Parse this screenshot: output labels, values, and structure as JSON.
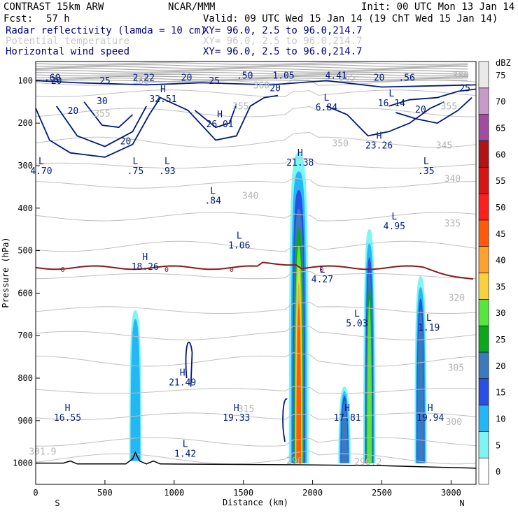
{
  "header": {
    "model": "CONTRAST 15km ARW",
    "center": "NCAR/MMM",
    "init": "Init: 00 UTC Mon 13 Jan 14",
    "fcst_label": "Fcst:",
    "fcst_value": "57 h",
    "valid": "Valid: 09 UTC Wed 15 Jan 14 (19 ChT Wed 15 Jan 14)"
  },
  "fields": [
    {
      "name": "Radar reflectivity (lamda = 10 cm)",
      "xy": "XY=  96.0,  2.5 to  96.0,214.7",
      "color": "#000080"
    },
    {
      "name": "Potential temperature",
      "xy": "XY=  96.0,  2.5 to  96.0,214.7",
      "color": "#c8c8c8"
    },
    {
      "name": "Horizontal wind speed",
      "xy": "XY=  96.0,  2.5 to  96.0,214.7",
      "color": "#000080"
    }
  ],
  "chart_data": {
    "type": "cross-section",
    "title": "Radar reflectivity / potential temperature / wind speed cross-section",
    "xlabel": "Distance (km)",
    "ylabel": "Pressure (hPa)",
    "xlim": [
      0,
      3180
    ],
    "ylim": [
      1050,
      55
    ],
    "x_ticks": [
      0,
      500,
      1000,
      1500,
      2000,
      2500,
      3000
    ],
    "y_ticks": [
      100,
      200,
      300,
      400,
      500,
      600,
      700,
      800,
      900,
      1000
    ],
    "x_end_labels": {
      "left": "S",
      "right": "N"
    },
    "colorbar": {
      "unit": "dBZ",
      "labels": [
        0,
        5,
        10,
        15,
        20,
        25,
        30,
        35,
        40,
        45,
        50,
        55,
        60,
        65,
        70,
        75
      ],
      "colors": [
        "#ffffff",
        "#7ef5f5",
        "#23b7f5",
        "#2a4fe6",
        "#3a7abf",
        "#0aa81a",
        "#56e63c",
        "#f7d23c",
        "#ffa12e",
        "#ff5a0a",
        "#ff1e1e",
        "#d81414",
        "#b01414",
        "#a04ca0",
        "#c89ac8",
        "#e9e9e9"
      ]
    },
    "reflectivity_cells": [
      {
        "x": 1900,
        "top": 270,
        "bottom": 1000,
        "max_dbz": 45
      },
      {
        "x": 2410,
        "top": 450,
        "bottom": 1000,
        "max_dbz": 30
      },
      {
        "x": 2780,
        "top": 560,
        "bottom": 1000,
        "max_dbz": 20
      },
      {
        "x": 2230,
        "top": 820,
        "bottom": 1000,
        "max_dbz": 20
      },
      {
        "x": 720,
        "top": 640,
        "bottom": 995,
        "max_dbz": 10
      }
    ],
    "wind_labels": [
      {
        "x": 150,
        "p": 108,
        "text": "20"
      },
      {
        "x": 500,
        "p": 108,
        "text": "25"
      },
      {
        "x": 1090,
        "p": 100,
        "text": "20"
      },
      {
        "x": 1290,
        "p": 108,
        "text": "25"
      },
      {
        "x": 2480,
        "p": 100,
        "text": "20"
      },
      {
        "x": 3100,
        "p": 125,
        "text": "25"
      },
      {
        "x": 270,
        "p": 178,
        "text": "20"
      },
      {
        "x": 480,
        "p": 155,
        "text": "30"
      },
      {
        "x": 650,
        "p": 250,
        "text": "20"
      },
      {
        "x": 1730,
        "p": 125,
        "text": "20"
      },
      {
        "x": 2780,
        "p": 175,
        "text": "20"
      }
    ],
    "theta_labels": [
      {
        "x": 760,
        "p": 108,
        "text": "360"
      },
      {
        "x": 1630,
        "p": 118,
        "text": "360"
      },
      {
        "x": 2250,
        "p": 100,
        "text": "365"
      },
      {
        "x": 3070,
        "p": 95,
        "text": "380"
      },
      {
        "x": 480,
        "p": 185,
        "text": "355"
      },
      {
        "x": 1480,
        "p": 168,
        "text": "355"
      },
      {
        "x": 2200,
        "p": 255,
        "text": "350"
      },
      {
        "x": 2985,
        "p": 168,
        "text": "355"
      },
      {
        "x": 2950,
        "p": 260,
        "text": "345"
      },
      {
        "x": 3010,
        "p": 338,
        "text": "340"
      },
      {
        "x": 1550,
        "p": 378,
        "text": "340"
      },
      {
        "x": 3010,
        "p": 443,
        "text": "335"
      },
      {
        "x": 3040,
        "p": 618,
        "text": "320"
      },
      {
        "x": 3035,
        "p": 783,
        "text": "305"
      },
      {
        "x": 3020,
        "p": 910,
        "text": "300"
      },
      {
        "x": 1520,
        "p": 880,
        "text": "315"
      },
      {
        "x": 1870,
        "p": 1002,
        "text": "290"
      },
      {
        "x": 2400,
        "p": 1005,
        "text": "290.2"
      },
      {
        "x": 50,
        "p": 980,
        "text": "301.9"
      }
    ],
    "freezing_level_label": "0",
    "extrema": [
      {
        "x": 120,
        "p": 100,
        "text": ".60"
      },
      {
        "x": 780,
        "p": 100,
        "text": "2.22"
      },
      {
        "x": 1510,
        "p": 95,
        "text": ".50"
      },
      {
        "x": 1790,
        "p": 95,
        "text": "1.05"
      },
      {
        "x": 2170,
        "p": 95,
        "text": "4.41"
      },
      {
        "x": 2680,
        "p": 100,
        "text": ".56"
      },
      {
        "x": 920,
        "p": 150,
        "kind": "H",
        "text": "32.51"
      },
      {
        "x": 1330,
        "p": 210,
        "kind": "H",
        "text": "26.01"
      },
      {
        "x": 2100,
        "p": 170,
        "kind": "L",
        "text": "6.84"
      },
      {
        "x": 2570,
        "p": 160,
        "kind": "L",
        "text": "16.14"
      },
      {
        "x": 2480,
        "p": 260,
        "kind": "H",
        "text": "23.26"
      },
      {
        "x": 1910,
        "p": 300,
        "kind": "H",
        "text": "21.38"
      },
      {
        "x": 40,
        "p": 320,
        "kind": "L",
        "text": "4.70"
      },
      {
        "x": 720,
        "p": 320,
        "kind": "L",
        "text": ".75"
      },
      {
        "x": 950,
        "p": 320,
        "kind": "L",
        "text": ".93"
      },
      {
        "x": 2820,
        "p": 320,
        "kind": "L",
        "text": ".35"
      },
      {
        "x": 1280,
        "p": 390,
        "kind": "L",
        "text": ".84"
      },
      {
        "x": 2590,
        "p": 450,
        "kind": "L",
        "text": "4.95"
      },
      {
        "x": 1470,
        "p": 495,
        "kind": "L",
        "text": "1.06"
      },
      {
        "x": 790,
        "p": 545,
        "kind": "H",
        "text": "18.26"
      },
      {
        "x": 2070,
        "p": 575,
        "kind": "L",
        "text": "4.27"
      },
      {
        "x": 2320,
        "p": 678,
        "kind": "L",
        "text": "5.03"
      },
      {
        "x": 2840,
        "p": 688,
        "kind": "L",
        "text": "1.19"
      },
      {
        "x": 1060,
        "p": 817,
        "kind": "H",
        "text": "21.49"
      },
      {
        "x": 230,
        "p": 900,
        "kind": "H",
        "text": "16.55"
      },
      {
        "x": 1450,
        "p": 900,
        "kind": "H",
        "text": "19.33"
      },
      {
        "x": 2250,
        "p": 900,
        "kind": "H",
        "text": "17.81"
      },
      {
        "x": 2850,
        "p": 900,
        "kind": "H",
        "text": "19.94"
      },
      {
        "x": 1080,
        "p": 985,
        "kind": "L",
        "text": "1.42"
      }
    ]
  }
}
